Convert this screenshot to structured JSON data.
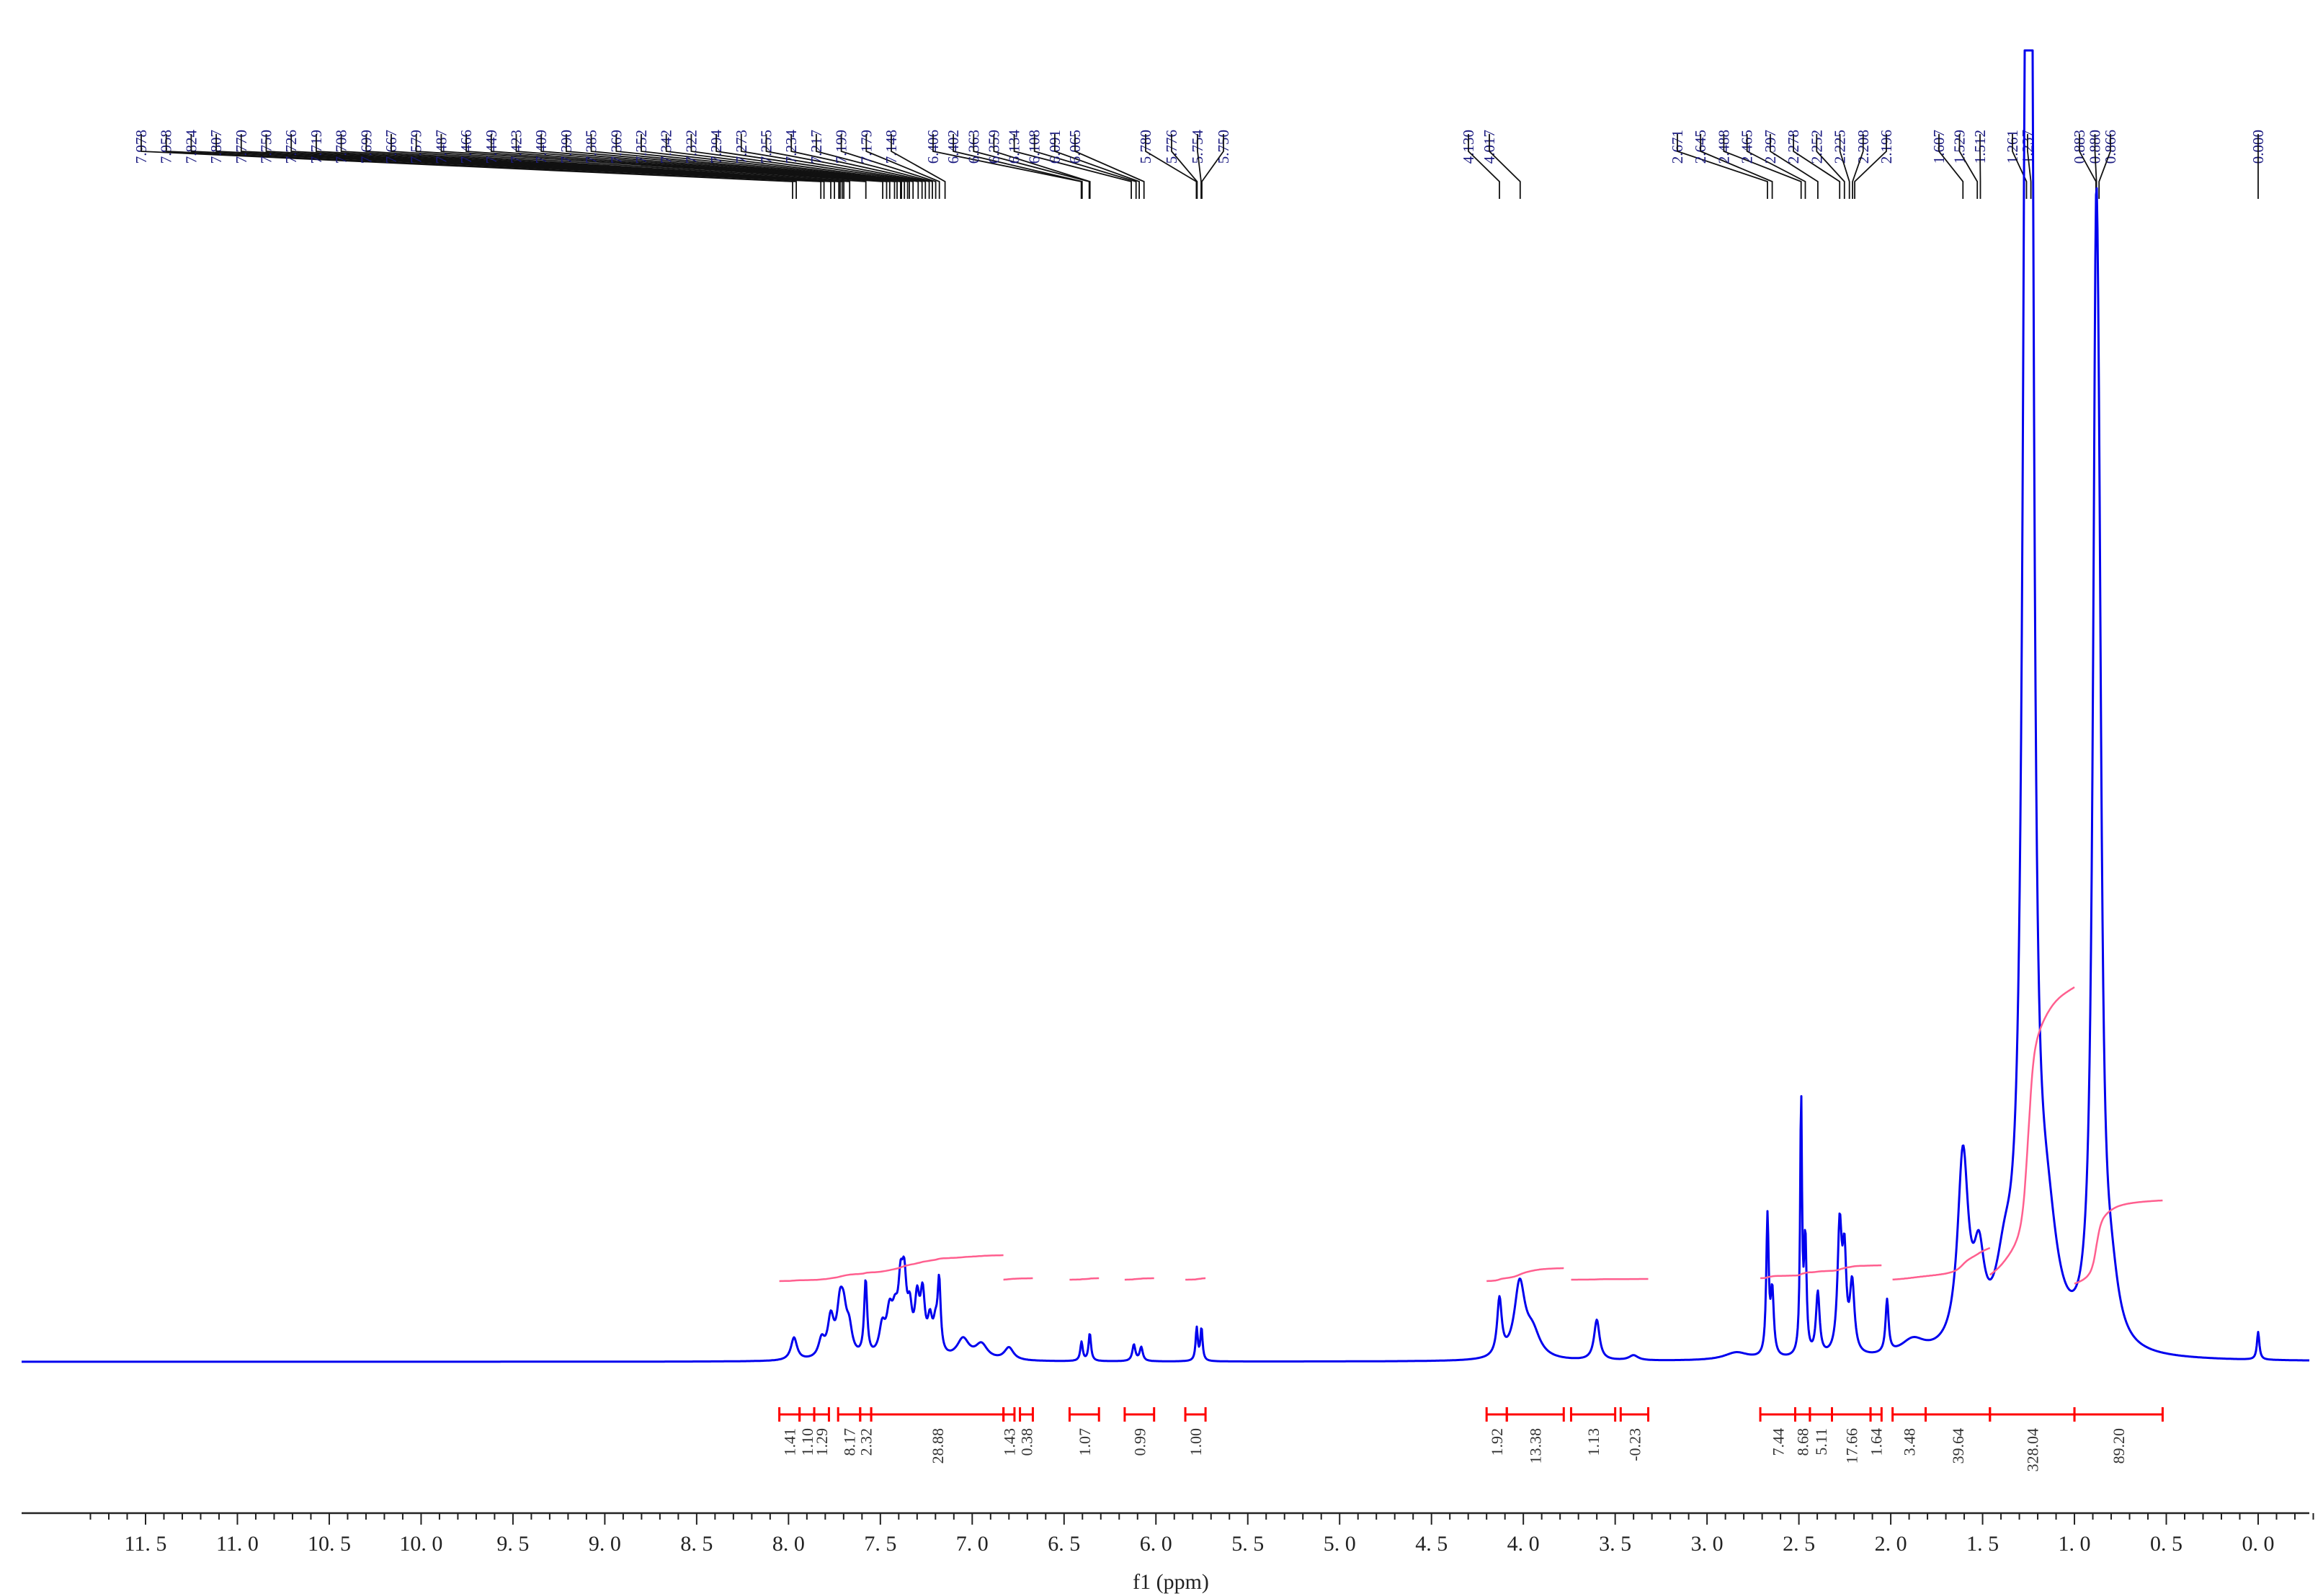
{
  "chart_data": {
    "type": "line",
    "title": "",
    "xlabel": "f1 (ppm)",
    "ylabel": "",
    "xlim": [
      11.8,
      -0.3
    ],
    "x_reversed": true,
    "grid": false,
    "x_ticks": [
      "11.5",
      "11.0",
      "10.5",
      "10.0",
      "9.5",
      "9.0",
      "8.5",
      "8.0",
      "7.5",
      "7.0",
      "6.5",
      "6.0",
      "5.5",
      "5.0",
      "4.5",
      "4.0",
      "3.5",
      "3.0",
      "2.5",
      "2.0",
      "1.5",
      "1.0",
      "0.5",
      "0.0"
    ],
    "colors": {
      "spectrum": "#0000ee",
      "integral_curve": "#ff5f8f",
      "integral_bracket": "#ff0000",
      "peak_labels": "#1a1a80"
    },
    "peak_labels": [
      {
        "group": "aromatic",
        "labels": [
          "7.978",
          "7.958",
          "7.824",
          "7.807",
          "7.770",
          "7.750",
          "7.726",
          "7.719",
          "7.708",
          "7.699",
          "7.667",
          "7.579",
          "7.487",
          "7.466",
          "7.449",
          "7.423",
          "7.409",
          "7.390",
          "7.385",
          "7.369",
          "7.352",
          "7.342",
          "7.322",
          "7.294",
          "7.273",
          "7.255",
          "7.234",
          "7.217",
          "7.199",
          "7.179",
          "7.148"
        ]
      },
      {
        "group": "vinyl-1",
        "labels": [
          "6.406",
          "6.402",
          "6.363",
          "6.359",
          "6.134",
          "6.108",
          "6.091",
          "6.065"
        ]
      },
      {
        "group": "vinyl-2",
        "labels": [
          "5.780",
          "5.776",
          "5.754",
          "5.750"
        ]
      },
      {
        "group": "oxy",
        "labels": [
          "4.130",
          "4.017"
        ]
      },
      {
        "group": "aliphatic-a",
        "labels": [
          "2.671",
          "2.645",
          "2.488",
          "2.465",
          "2.397",
          "2.278",
          "2.252",
          "2.225",
          "2.208",
          "2.196"
        ]
      },
      {
        "group": "aliphatic-b",
        "labels": [
          "1.607",
          "1.529",
          "1.512"
        ]
      },
      {
        "group": "aliphatic-c",
        "labels": [
          "1.261",
          "1.237"
        ]
      },
      {
        "group": "methyl",
        "labels": [
          "0.883",
          "0.880",
          "0.866"
        ]
      },
      {
        "group": "ref",
        "labels": [
          "0.000"
        ]
      }
    ],
    "integrations": [
      {
        "from": 8.05,
        "to": 7.94,
        "value": "1.41"
      },
      {
        "from": 7.94,
        "to": 7.86,
        "value": "1.10"
      },
      {
        "from": 7.86,
        "to": 7.78,
        "value": "1.29"
      },
      {
        "from": 7.73,
        "to": 7.61,
        "value": "8.17"
      },
      {
        "from": 7.61,
        "to": 7.55,
        "value": "2.32"
      },
      {
        "from": 7.55,
        "to": 6.83,
        "value": "28.88"
      },
      {
        "from": 6.83,
        "to": 6.77,
        "value": "1.43"
      },
      {
        "from": 6.74,
        "to": 6.67,
        "value": "0.38"
      },
      {
        "from": 6.47,
        "to": 6.31,
        "value": "1.07"
      },
      {
        "from": 6.17,
        "to": 6.01,
        "value": "0.99"
      },
      {
        "from": 5.84,
        "to": 5.73,
        "value": "1.00"
      },
      {
        "from": 4.2,
        "to": 4.09,
        "value": "1.92"
      },
      {
        "from": 4.09,
        "to": 3.78,
        "value": "13.38"
      },
      {
        "from": 3.74,
        "to": 3.5,
        "value": "1.13"
      },
      {
        "from": 3.47,
        "to": 3.32,
        "value": "-0.23"
      },
      {
        "from": 2.71,
        "to": 2.52,
        "value": "7.44"
      },
      {
        "from": 2.52,
        "to": 2.44,
        "value": "8.68"
      },
      {
        "from": 2.44,
        "to": 2.32,
        "value": "5.11"
      },
      {
        "from": 2.32,
        "to": 2.11,
        "value": "17.66"
      },
      {
        "from": 2.11,
        "to": 2.05,
        "value": "1.64"
      },
      {
        "from": 1.99,
        "to": 1.81,
        "value": "3.48"
      },
      {
        "from": 1.81,
        "to": 1.46,
        "value": "39.64"
      },
      {
        "from": 1.46,
        "to": 1.0,
        "value": "328.04"
      },
      {
        "from": 1.0,
        "to": 0.52,
        "value": "89.20"
      }
    ],
    "peaks": [
      {
        "x": 7.97,
        "h": 0.018,
        "w": 0.02
      },
      {
        "x": 7.82,
        "h": 0.014,
        "w": 0.02
      },
      {
        "x": 7.77,
        "h": 0.03,
        "w": 0.02
      },
      {
        "x": 7.72,
        "h": 0.035,
        "w": 0.02
      },
      {
        "x": 7.7,
        "h": 0.028,
        "w": 0.02
      },
      {
        "x": 7.67,
        "h": 0.02,
        "w": 0.02
      },
      {
        "x": 7.58,
        "h": 0.06,
        "w": 0.01
      },
      {
        "x": 7.49,
        "h": 0.022,
        "w": 0.02
      },
      {
        "x": 7.45,
        "h": 0.03,
        "w": 0.02
      },
      {
        "x": 7.42,
        "h": 0.026,
        "w": 0.02
      },
      {
        "x": 7.39,
        "h": 0.045,
        "w": 0.015
      },
      {
        "x": 7.37,
        "h": 0.05,
        "w": 0.015
      },
      {
        "x": 7.34,
        "h": 0.03,
        "w": 0.015
      },
      {
        "x": 7.3,
        "h": 0.04,
        "w": 0.015
      },
      {
        "x": 7.27,
        "h": 0.045,
        "w": 0.015
      },
      {
        "x": 7.23,
        "h": 0.025,
        "w": 0.015
      },
      {
        "x": 7.2,
        "h": 0.02,
        "w": 0.015
      },
      {
        "x": 7.18,
        "h": 0.055,
        "w": 0.01
      },
      {
        "x": 7.05,
        "h": 0.016,
        "w": 0.04
      },
      {
        "x": 6.95,
        "h": 0.012,
        "w": 0.04
      },
      {
        "x": 6.8,
        "h": 0.01,
        "w": 0.03
      },
      {
        "x": 6.405,
        "h": 0.015,
        "w": 0.008
      },
      {
        "x": 6.36,
        "h": 0.022,
        "w": 0.008
      },
      {
        "x": 6.12,
        "h": 0.013,
        "w": 0.01
      },
      {
        "x": 6.08,
        "h": 0.011,
        "w": 0.01
      },
      {
        "x": 5.778,
        "h": 0.026,
        "w": 0.007
      },
      {
        "x": 5.752,
        "h": 0.026,
        "w": 0.007
      },
      {
        "x": 4.13,
        "h": 0.045,
        "w": 0.015
      },
      {
        "x": 4.02,
        "h": 0.058,
        "w": 0.035
      },
      {
        "x": 3.95,
        "h": 0.02,
        "w": 0.05
      },
      {
        "x": 3.6,
        "h": 0.032,
        "w": 0.018
      },
      {
        "x": 3.4,
        "h": 0.004,
        "w": 0.03
      },
      {
        "x": 2.84,
        "h": 0.006,
        "w": 0.08
      },
      {
        "x": 2.671,
        "h": 0.11,
        "w": 0.008
      },
      {
        "x": 2.645,
        "h": 0.05,
        "w": 0.01
      },
      {
        "x": 2.488,
        "h": 0.205,
        "w": 0.006
      },
      {
        "x": 2.465,
        "h": 0.09,
        "w": 0.008
      },
      {
        "x": 2.397,
        "h": 0.05,
        "w": 0.012
      },
      {
        "x": 2.278,
        "h": 0.1,
        "w": 0.014
      },
      {
        "x": 2.252,
        "h": 0.07,
        "w": 0.012
      },
      {
        "x": 2.21,
        "h": 0.055,
        "w": 0.015
      },
      {
        "x": 2.02,
        "h": 0.042,
        "w": 0.01
      },
      {
        "x": 1.88,
        "h": 0.012,
        "w": 0.08
      },
      {
        "x": 1.607,
        "h": 0.15,
        "w": 0.035
      },
      {
        "x": 1.52,
        "h": 0.06,
        "w": 0.035
      },
      {
        "x": 1.38,
        "h": 0.05,
        "w": 0.06
      },
      {
        "x": 1.261,
        "h": 1.02,
        "w": 0.022
      },
      {
        "x": 1.237,
        "h": 0.9,
        "w": 0.018
      },
      {
        "x": 1.15,
        "h": 0.08,
        "w": 0.07
      },
      {
        "x": 0.883,
        "h": 0.74,
        "w": 0.02
      },
      {
        "x": 0.866,
        "h": 0.3,
        "w": 0.018
      },
      {
        "x": 0.8,
        "h": 0.04,
        "w": 0.05
      },
      {
        "x": 0.0,
        "h": 0.022,
        "w": 0.008
      }
    ]
  }
}
